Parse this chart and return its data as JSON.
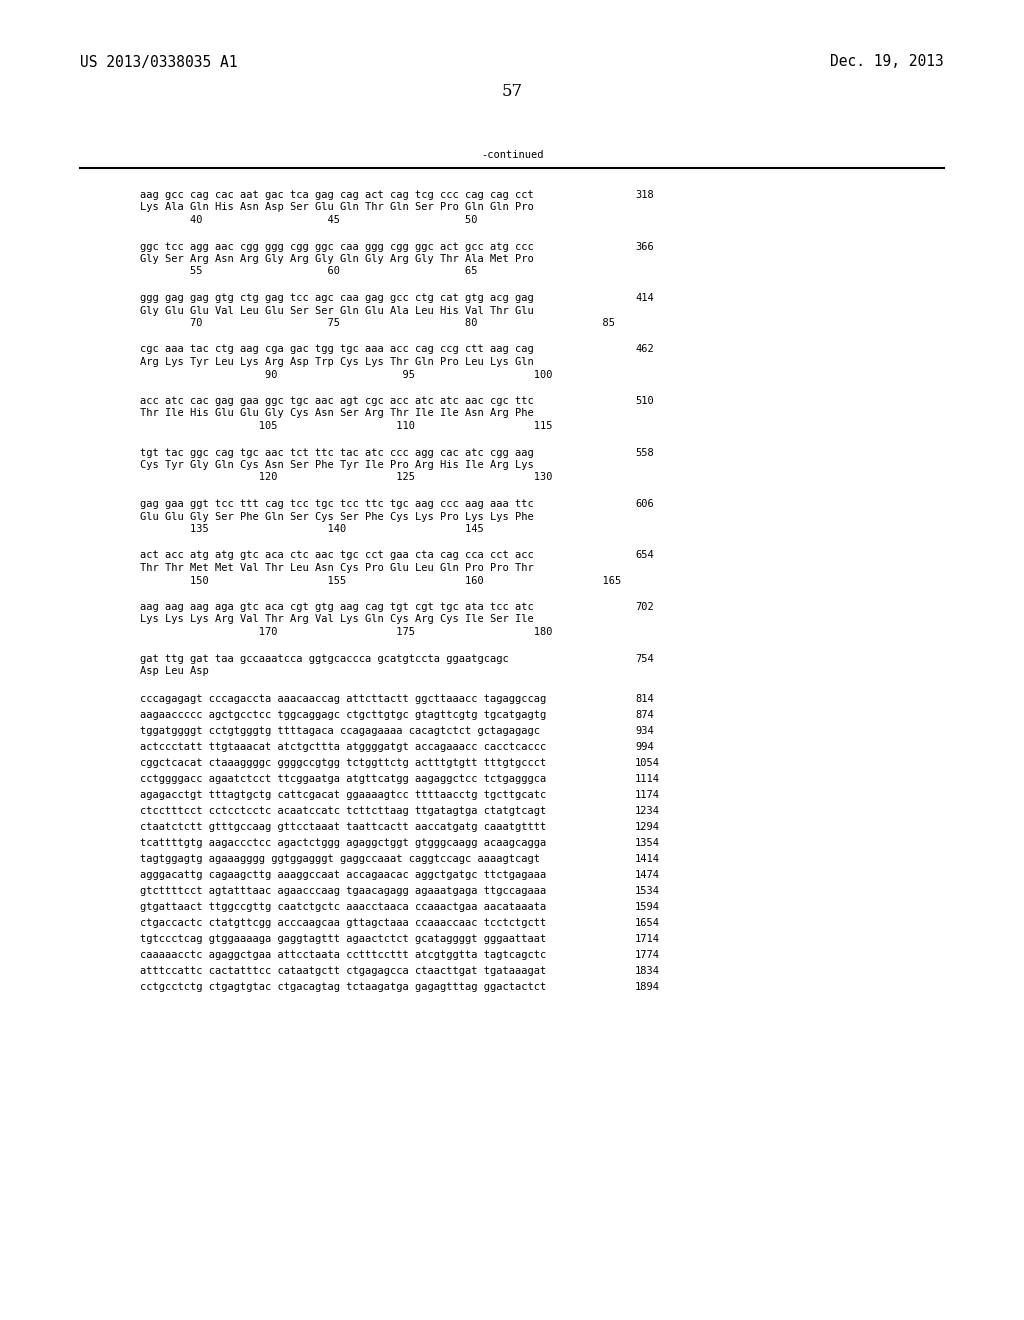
{
  "header_left": "US 2013/0338035 A1",
  "header_right": "Dec. 19, 2013",
  "page_number": "57",
  "continued_label": "-continued",
  "background_color": "#ffffff",
  "text_color": "#000000",
  "font_size_header": 10.5,
  "font_size_body": 7.5,
  "font_size_page": 12,
  "sequence_blocks": [
    {
      "dna": "aag gcc cag cac aat gac tca gag cag act cag tcg ccc cag cag cct",
      "aa": "Lys Ala Gln His Asn Asp Ser Glu Gln Thr Gln Ser Pro Gln Gln Pro",
      "nums": "        40                    45                    50",
      "num_right": "318"
    },
    {
      "dna": "ggc tcc agg aac cgg ggg cgg ggc caa ggg cgg ggc act gcc atg ccc",
      "aa": "Gly Ser Arg Asn Arg Gly Arg Gly Gln Gly Arg Gly Thr Ala Met Pro",
      "nums": "        55                    60                    65",
      "num_right": "366"
    },
    {
      "dna": "ggg gag gag gtg ctg gag tcc agc caa gag gcc ctg cat gtg acg gag",
      "aa": "Gly Glu Glu Val Leu Glu Ser Ser Gln Glu Ala Leu His Val Thr Glu",
      "nums": "        70                    75                    80                    85",
      "num_right": "414"
    },
    {
      "dna": "cgc aaa tac ctg aag cga gac tgg tgc aaa acc cag ccg ctt aag cag",
      "aa": "Arg Lys Tyr Leu Lys Arg Asp Trp Cys Lys Thr Gln Pro Leu Lys Gln",
      "nums": "                    90                    95                   100",
      "num_right": "462"
    },
    {
      "dna": "acc atc cac gag gaa ggc tgc aac agt cgc acc atc atc aac cgc ttc",
      "aa": "Thr Ile His Glu Glu Gly Cys Asn Ser Arg Thr Ile Ile Asn Arg Phe",
      "nums": "                   105                   110                   115",
      "num_right": "510"
    },
    {
      "dna": "tgt tac ggc cag tgc aac tct ttc tac atc ccc agg cac atc cgg aag",
      "aa": "Cys Tyr Gly Gln Cys Asn Ser Phe Tyr Ile Pro Arg His Ile Arg Lys",
      "nums": "                   120                   125                   130",
      "num_right": "558"
    },
    {
      "dna": "gag gaa ggt tcc ttt cag tcc tgc tcc ttc tgc aag ccc aag aaa ttc",
      "aa": "Glu Glu Gly Ser Phe Gln Ser Cys Ser Phe Cys Lys Pro Lys Lys Phe",
      "nums": "        135                   140                   145",
      "num_right": "606"
    },
    {
      "dna": "act acc atg atg gtc aca ctc aac tgc cct gaa cta cag cca cct acc",
      "aa": "Thr Thr Met Met Val Thr Leu Asn Cys Pro Glu Leu Gln Pro Pro Thr",
      "nums": "        150                   155                   160                   165",
      "num_right": "654"
    },
    {
      "dna": "aag aag aag aga gtc aca cgt gtg aag cag tgt cgt tgc ata tcc atc",
      "aa": "Lys Lys Lys Arg Val Thr Arg Val Lys Gln Cys Arg Cys Ile Ser Ile",
      "nums": "                   170                   175                   180",
      "num_right": "702"
    },
    {
      "dna": "gat ttg gat taa gccaaatcca ggtgcaccca gcatgtccta ggaatgcagc",
      "aa": "Asp Leu Asp",
      "nums": "",
      "num_right": "754"
    }
  ],
  "plain_lines": [
    {
      "text": "cccagagagt cccagaccta aaacaaccag attcttactt ggcttaaacc tagaggccag",
      "num": "814"
    },
    {
      "text": "aagaaccccc agctgcctcc tggcaggagc ctgcttgtgc gtagttcgtg tgcatgagtg",
      "num": "874"
    },
    {
      "text": "tggatggggt cctgtgggtg ttttagaca ccagagaaaa cacagtctct gctagagagc",
      "num": "934"
    },
    {
      "text": "actccctatt ttgtaaacat atctgcttta atggggatgt accagaaacc cacctcaccc",
      "num": "994"
    },
    {
      "text": "cggctcacat ctaaaggggc ggggccgtgg tctggttctg actttgtgtt tttgtgccct",
      "num": "1054"
    },
    {
      "text": "cctggggacc agaatctcct ttcggaatga atgttcatgg aagaggctcc tctgagggca",
      "num": "1114"
    },
    {
      "text": "agagacctgt tttagtgctg cattcgacat ggaaaagtcc ttttaacctg tgcttgcatc",
      "num": "1174"
    },
    {
      "text": "ctcctttcct cctcctcctc acaatccatc tcttcttaag ttgatagtga ctatgtcagt",
      "num": "1234"
    },
    {
      "text": "ctaatctctt gtttgccaag gttcctaaat taattcactt aaccatgatg caaatgtttt",
      "num": "1294"
    },
    {
      "text": "tcattttgtg aagaccctcc agactctggg agaggctggt gtgggcaagg acaagcagga",
      "num": "1354"
    },
    {
      "text": "tagtggagtg agaaagggg ggtggagggt gaggccaaat caggtccagc aaaagtcagt",
      "num": "1414"
    },
    {
      "text": "agggacattg cagaagcttg aaaggccaat accagaacac aggctgatgc ttctgagaaa",
      "num": "1474"
    },
    {
      "text": "gtcttttcct agtatttaac agaacccaag tgaacagagg agaaatgaga ttgccagaaa",
      "num": "1534"
    },
    {
      "text": "gtgattaact ttggccgttg caatctgctc aaacctaaca ccaaactgaa aacataaata",
      "num": "1594"
    },
    {
      "text": "ctgaccactc ctatgttcgg acccaagcaa gttagctaaa ccaaaccaac tcctctgctt",
      "num": "1654"
    },
    {
      "text": "tgtccctcag gtggaaaaga gaggtagttt agaactctct gcataggggt gggaattaat",
      "num": "1714"
    },
    {
      "text": "caaaaacctc agaggctgaa attcctaata cctttccttt atcgtggtta tagtcagctc",
      "num": "1774"
    },
    {
      "text": "atttccattc cactatttcc cataatgctt ctgagagcca ctaacttgat tgataaagat",
      "num": "1834"
    },
    {
      "text": "cctgcctctg ctgagtgtac ctgacagtag tctaagatga gagagtttag ggactactct",
      "num": "1894"
    }
  ]
}
